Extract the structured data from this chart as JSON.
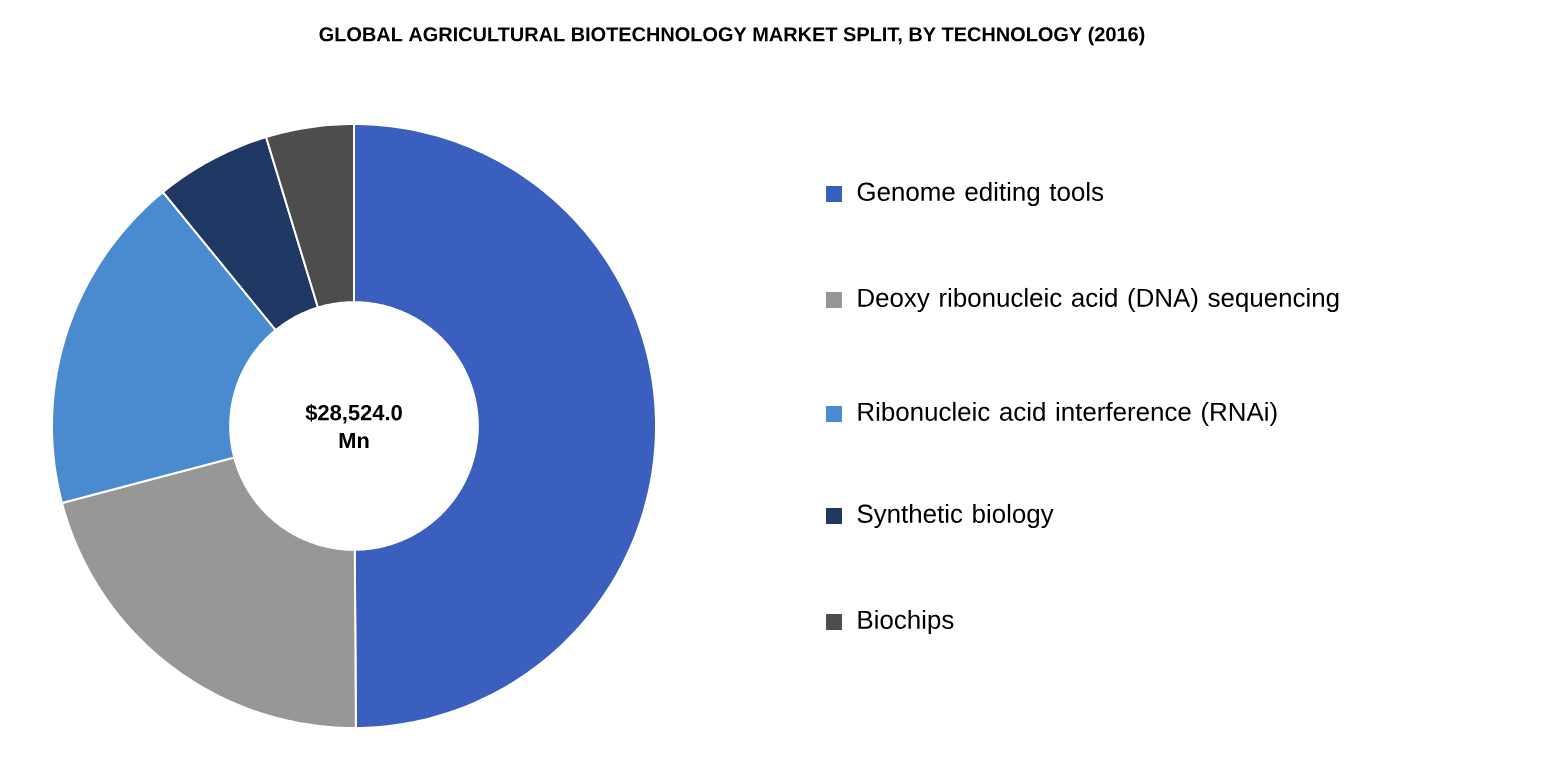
{
  "chart_data": {
    "type": "donut",
    "title": "GLOBAL AGRICULTURAL BIOTECHNOLOGY MARKET SPLIT, BY TECHNOLOGY (2016)",
    "categories": [
      "Genome editing tools",
      "Deoxy ribonucleic acid (DNA) sequencing",
      "Ribonucleic acid interference (RNAi)",
      "Synthetic biology",
      "Biochips"
    ],
    "values": [
      49.9,
      21.0,
      18.2,
      6.2,
      4.7
    ],
    "colors": [
      "#3a5fbf",
      "#979797",
      "#4a8bd0",
      "#1f3864",
      "#4d4d4d"
    ],
    "annotations": [
      "$28,524.0 Mn"
    ],
    "legend": "right"
  }
}
